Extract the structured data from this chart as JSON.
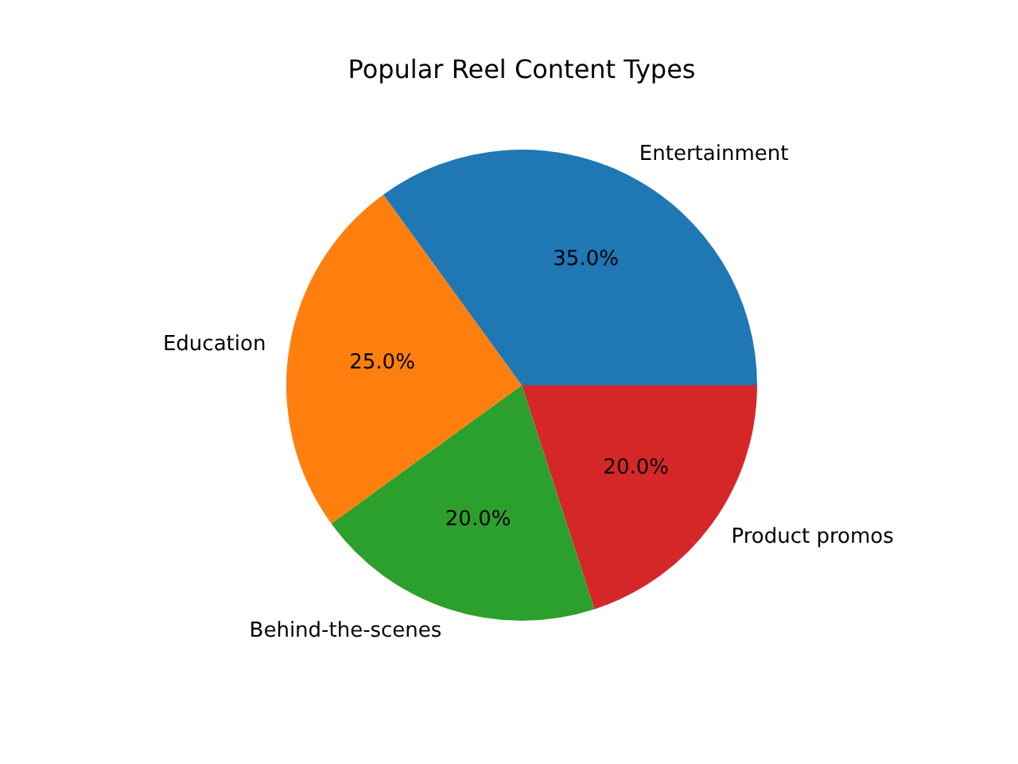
{
  "chart_data": {
    "type": "pie",
    "title": "Popular Reel Content Types",
    "categories": [
      "Entertainment",
      "Education",
      "Behind-the-scenes",
      "Product promos"
    ],
    "values": [
      35,
      25,
      20,
      20
    ],
    "colors": [
      "#1f77b4",
      "#ff7f0e",
      "#2ca02c",
      "#d62728"
    ],
    "value_labels": [
      "35.0%",
      "25.0%",
      "20.0%",
      "20.0%"
    ]
  }
}
